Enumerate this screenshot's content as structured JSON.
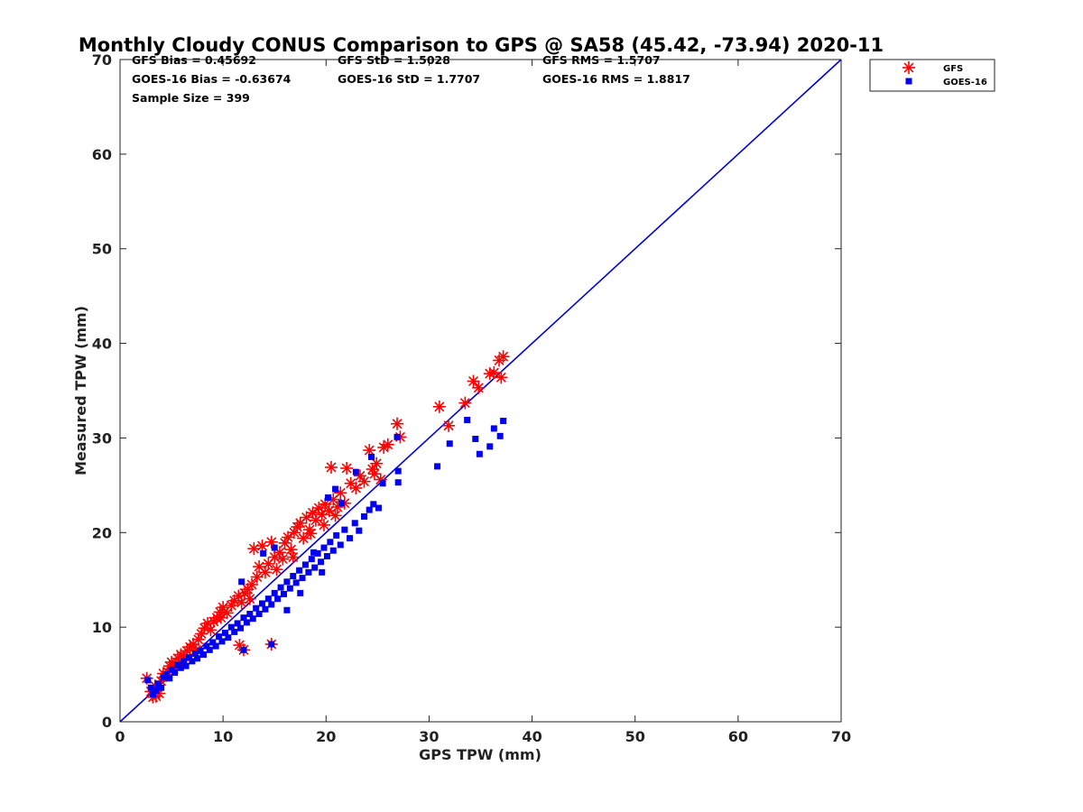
{
  "chart_data": {
    "type": "scatter",
    "title": "Monthly Cloudy CONUS Comparison to GPS @ SA58 (45.42, -73.94) 2020-11",
    "xlabel": "GPS TPW (mm)",
    "ylabel": "Measured TPW (mm)",
    "xlim": [
      0,
      70
    ],
    "ylim": [
      0,
      70
    ],
    "xticks": [
      0,
      10,
      20,
      30,
      40,
      50,
      60,
      70
    ],
    "yticks": [
      0,
      10,
      20,
      30,
      40,
      50,
      60,
      70
    ],
    "grid": false,
    "legend_position": "top-right outside",
    "stats": {
      "gfs_bias": "GFS Bias = 0.45692",
      "goes_bias": "GOES-16 Bias = -0.63674",
      "sample_size": "Sample Size = 399",
      "gfs_std": "GFS StD = 1.5028",
      "goes_std": "GOES-16 StD = 1.7707",
      "gfs_rms": "GFS RMS = 1.5707",
      "goes_rms": "GOES-16 RMS = 1.8817"
    },
    "reference_line": {
      "x": [
        0,
        70
      ],
      "y": [
        0,
        70
      ],
      "color": "#0000dd"
    },
    "series": [
      {
        "name": "GFS",
        "marker": "asterisk",
        "color": "#ff0000",
        "points": [
          [
            2.6,
            4.6
          ],
          [
            3.0,
            3.2
          ],
          [
            3.2,
            2.6
          ],
          [
            3.5,
            2.7
          ],
          [
            3.8,
            3.0
          ],
          [
            3.4,
            3.8
          ],
          [
            4.0,
            4.3
          ],
          [
            4.2,
            5.1
          ],
          [
            4.6,
            5.3
          ],
          [
            4.8,
            5.9
          ],
          [
            5.0,
            6.3
          ],
          [
            5.4,
            6.0
          ],
          [
            5.6,
            6.7
          ],
          [
            5.9,
            7.1
          ],
          [
            6.2,
            6.9
          ],
          [
            6.5,
            7.5
          ],
          [
            6.8,
            7.9
          ],
          [
            7.1,
            8.2
          ],
          [
            7.4,
            7.6
          ],
          [
            7.6,
            8.7
          ],
          [
            7.9,
            9.3
          ],
          [
            8.2,
            9.9
          ],
          [
            8.5,
            10.4
          ],
          [
            8.8,
            9.7
          ],
          [
            9.1,
            10.6
          ],
          [
            9.4,
            11.0
          ],
          [
            9.7,
            11.6
          ],
          [
            10.0,
            12.1
          ],
          [
            10.4,
            11.5
          ],
          [
            10.8,
            12.3
          ],
          [
            11.1,
            12.8
          ],
          [
            11.5,
            13.3
          ],
          [
            11.8,
            12.6
          ],
          [
            12.1,
            13.6
          ],
          [
            12.4,
            14.0
          ],
          [
            12.8,
            14.5
          ],
          [
            13.0,
            18.3
          ],
          [
            13.3,
            15.3
          ],
          [
            13.5,
            16.4
          ],
          [
            13.8,
            18.6
          ],
          [
            14.1,
            15.8
          ],
          [
            14.4,
            16.7
          ],
          [
            14.7,
            19.0
          ],
          [
            15.0,
            17.4
          ],
          [
            15.2,
            16.1
          ],
          [
            15.5,
            17.9
          ],
          [
            15.8,
            17.2
          ],
          [
            16.0,
            18.9
          ],
          [
            16.3,
            19.5
          ],
          [
            16.6,
            18.2
          ],
          [
            16.9,
            20.0
          ],
          [
            17.2,
            20.6
          ],
          [
            17.5,
            21.0
          ],
          [
            17.8,
            19.4
          ],
          [
            18.1,
            21.6
          ],
          [
            18.4,
            20.3
          ],
          [
            18.7,
            22.1
          ],
          [
            19.0,
            21.3
          ],
          [
            19.3,
            22.6
          ],
          [
            19.6,
            21.9
          ],
          [
            19.9,
            23.0
          ],
          [
            20.3,
            22.3
          ],
          [
            20.7,
            23.5
          ],
          [
            21.1,
            22.7
          ],
          [
            21.4,
            24.2
          ],
          [
            21.8,
            23.1
          ],
          [
            20.5,
            26.9
          ],
          [
            22.0,
            26.8
          ],
          [
            22.4,
            25.2
          ],
          [
            22.9,
            24.7
          ],
          [
            23.3,
            26.0
          ],
          [
            23.7,
            25.4
          ],
          [
            24.2,
            28.7
          ],
          [
            24.5,
            26.7
          ],
          [
            24.9,
            27.3
          ],
          [
            25.3,
            25.6
          ],
          [
            25.6,
            29.0
          ],
          [
            26.0,
            29.3
          ],
          [
            24.7,
            26.2
          ],
          [
            26.9,
            31.5
          ],
          [
            27.2,
            30.1
          ],
          [
            31.0,
            33.3
          ],
          [
            31.9,
            31.3
          ],
          [
            33.5,
            33.7
          ],
          [
            34.3,
            36.0
          ],
          [
            34.8,
            35.3
          ],
          [
            35.9,
            36.8
          ],
          [
            36.3,
            36.9
          ],
          [
            36.8,
            38.2
          ],
          [
            37.2,
            38.6
          ],
          [
            37.0,
            36.4
          ],
          [
            12.0,
            7.6
          ],
          [
            14.7,
            8.2
          ],
          [
            11.6,
            8.1
          ],
          [
            5.2,
            5.6
          ],
          [
            6.0,
            6.1
          ],
          [
            9.8,
            11.0
          ],
          [
            12.6,
            13.0
          ],
          [
            16.8,
            17.4
          ],
          [
            18.5,
            19.9
          ],
          [
            19.8,
            20.8
          ],
          [
            20.9,
            21.8
          ]
        ]
      },
      {
        "name": "GOES-16",
        "marker": "square",
        "color": "#0000ee",
        "points": [
          [
            2.7,
            4.4
          ],
          [
            3.0,
            3.6
          ],
          [
            3.2,
            2.9
          ],
          [
            3.5,
            3.3
          ],
          [
            3.7,
            4.0
          ],
          [
            4.0,
            3.6
          ],
          [
            4.2,
            4.7
          ],
          [
            4.5,
            5.0
          ],
          [
            4.8,
            4.6
          ],
          [
            5.0,
            5.5
          ],
          [
            5.3,
            5.2
          ],
          [
            5.6,
            6.0
          ],
          [
            5.9,
            5.7
          ],
          [
            6.2,
            6.4
          ],
          [
            6.4,
            5.9
          ],
          [
            6.7,
            6.8
          ],
          [
            7.0,
            6.4
          ],
          [
            7.3,
            7.2
          ],
          [
            7.5,
            6.7
          ],
          [
            7.8,
            7.5
          ],
          [
            8.1,
            7.1
          ],
          [
            8.4,
            8.0
          ],
          [
            8.7,
            7.6
          ],
          [
            9.0,
            8.4
          ],
          [
            9.3,
            8.0
          ],
          [
            9.6,
            9.0
          ],
          [
            9.9,
            8.5
          ],
          [
            10.2,
            9.4
          ],
          [
            10.5,
            8.9
          ],
          [
            10.8,
            10.0
          ],
          [
            11.1,
            9.5
          ],
          [
            11.4,
            10.4
          ],
          [
            11.7,
            9.9
          ],
          [
            12.0,
            11.0
          ],
          [
            12.3,
            10.5
          ],
          [
            12.6,
            11.4
          ],
          [
            12.9,
            10.9
          ],
          [
            13.2,
            12.0
          ],
          [
            13.5,
            11.4
          ],
          [
            13.8,
            12.5
          ],
          [
            14.1,
            11.9
          ],
          [
            14.4,
            13.0
          ],
          [
            14.7,
            12.4
          ],
          [
            15.0,
            13.6
          ],
          [
            15.3,
            13.0
          ],
          [
            15.6,
            14.2
          ],
          [
            15.9,
            13.5
          ],
          [
            16.2,
            14.8
          ],
          [
            16.5,
            14.1
          ],
          [
            16.8,
            15.4
          ],
          [
            17.1,
            14.7
          ],
          [
            17.4,
            16.0
          ],
          [
            17.7,
            15.2
          ],
          [
            18.0,
            16.6
          ],
          [
            18.3,
            15.8
          ],
          [
            18.6,
            17.2
          ],
          [
            18.9,
            16.3
          ],
          [
            19.2,
            17.8
          ],
          [
            19.5,
            16.9
          ],
          [
            19.8,
            18.4
          ],
          [
            20.1,
            17.5
          ],
          [
            20.4,
            19.0
          ],
          [
            20.7,
            18.1
          ],
          [
            21.0,
            19.7
          ],
          [
            21.4,
            18.7
          ],
          [
            21.8,
            20.3
          ],
          [
            22.3,
            19.4
          ],
          [
            22.8,
            21.0
          ],
          [
            23.2,
            20.2
          ],
          [
            23.7,
            21.7
          ],
          [
            24.2,
            22.4
          ],
          [
            24.6,
            23.0
          ],
          [
            25.1,
            22.6
          ],
          [
            25.5,
            25.2
          ],
          [
            24.4,
            28.0
          ],
          [
            26.9,
            30.1
          ],
          [
            27.0,
            26.5
          ],
          [
            27.0,
            25.3
          ],
          [
            30.8,
            27.0
          ],
          [
            32.0,
            29.4
          ],
          [
            33.7,
            31.9
          ],
          [
            34.5,
            29.9
          ],
          [
            34.9,
            28.3
          ],
          [
            35.9,
            29.1
          ],
          [
            36.3,
            31.0
          ],
          [
            36.9,
            30.2
          ],
          [
            37.2,
            31.8
          ],
          [
            14.7,
            8.2
          ],
          [
            12.0,
            7.6
          ],
          [
            15.0,
            18.4
          ],
          [
            13.9,
            17.8
          ],
          [
            11.8,
            14.8
          ],
          [
            20.2,
            23.7
          ],
          [
            22.9,
            26.4
          ],
          [
            18.8,
            17.9
          ],
          [
            16.2,
            11.8
          ],
          [
            17.5,
            13.6
          ],
          [
            19.6,
            15.8
          ],
          [
            21.5,
            23.1
          ],
          [
            20.9,
            24.6
          ]
        ]
      }
    ]
  }
}
